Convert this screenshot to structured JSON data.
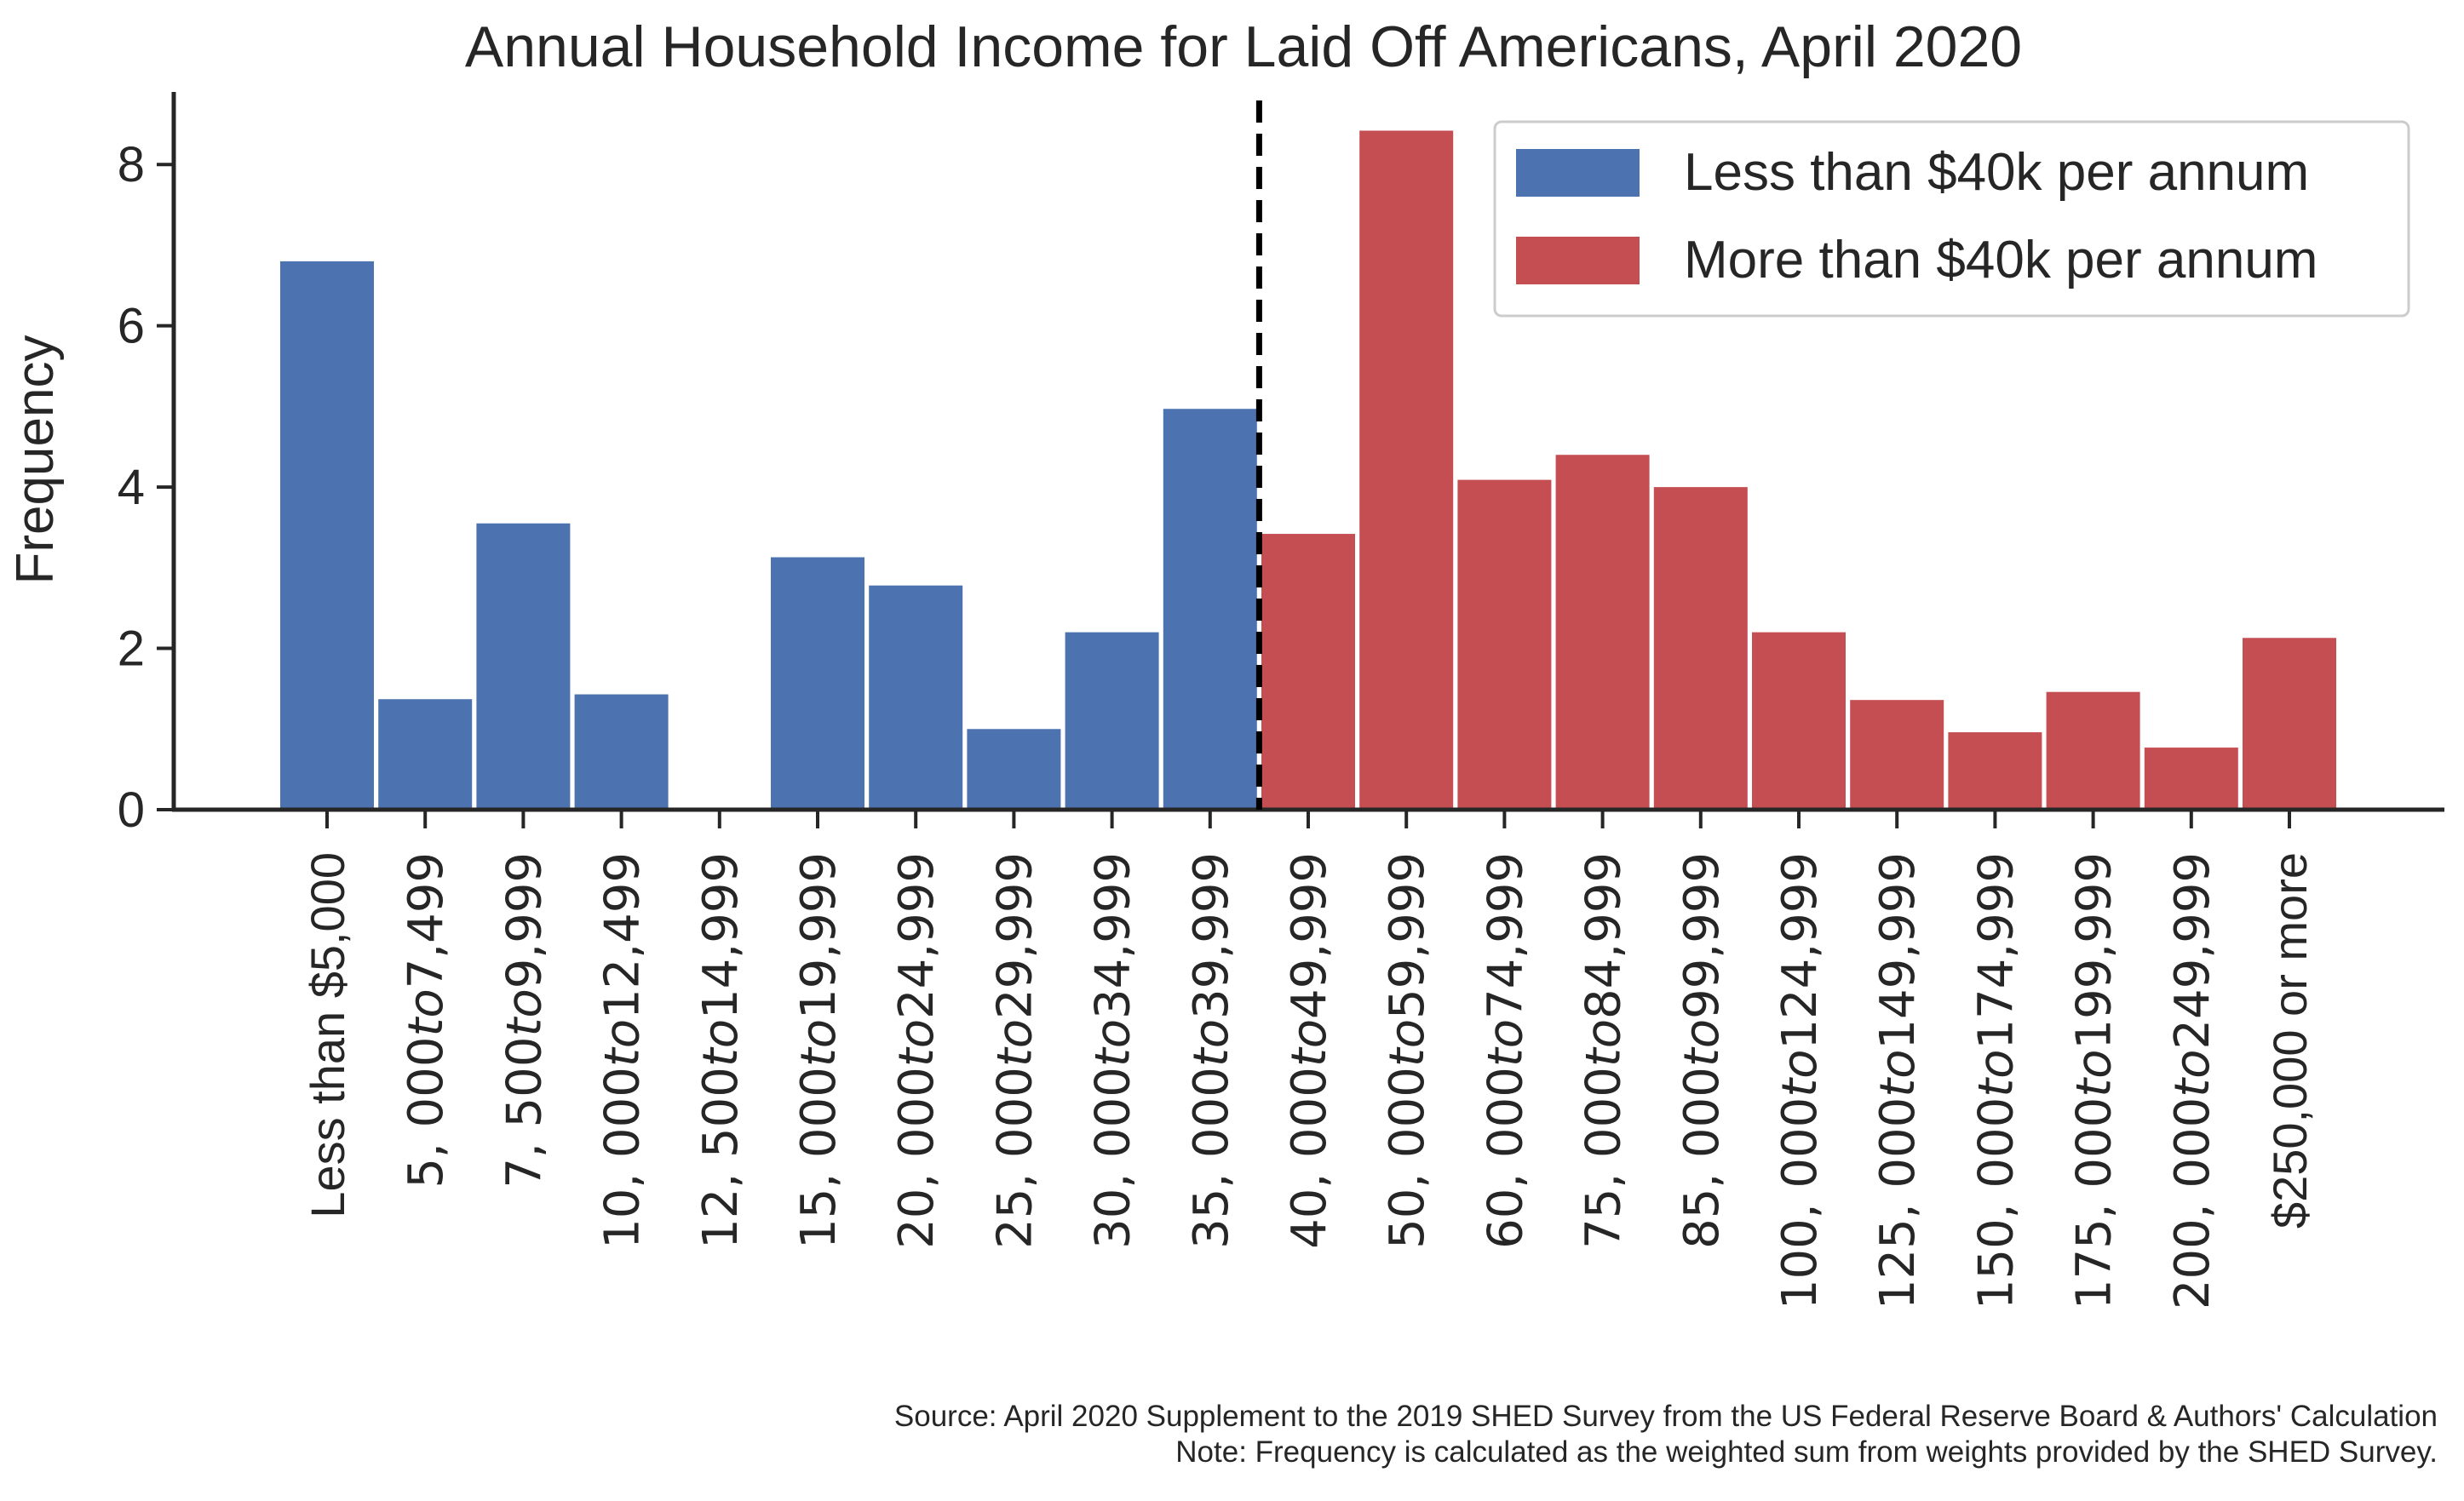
{
  "chart_data": {
    "type": "bar",
    "title": "Annual Household Income for Laid Off Americans, April 2020",
    "xlabel": "",
    "ylabel": "Frequency",
    "ylim": [
      0,
      8.9
    ],
    "yticks": [
      0,
      2,
      4,
      6,
      8
    ],
    "grid": false,
    "legend_position": "top-right",
    "categories": [
      {
        "parts": [
          {
            "t": "Less than $5,000",
            "i": false
          }
        ]
      },
      {
        "parts": [
          {
            "t": "5, 000",
            "i": false
          },
          {
            "t": "to",
            "i": true
          },
          {
            "t": "7,499",
            "i": false
          }
        ]
      },
      {
        "parts": [
          {
            "t": "7, 500",
            "i": false
          },
          {
            "t": "to",
            "i": true
          },
          {
            "t": "9,999",
            "i": false
          }
        ]
      },
      {
        "parts": [
          {
            "t": "10, 000",
            "i": false
          },
          {
            "t": "to",
            "i": true
          },
          {
            "t": "12,499",
            "i": false
          }
        ]
      },
      {
        "parts": [
          {
            "t": "12, 500",
            "i": false
          },
          {
            "t": "to",
            "i": true
          },
          {
            "t": "14,999",
            "i": false
          }
        ]
      },
      {
        "parts": [
          {
            "t": "15, 000",
            "i": false
          },
          {
            "t": "to",
            "i": true
          },
          {
            "t": "19,999",
            "i": false
          }
        ]
      },
      {
        "parts": [
          {
            "t": "20, 000",
            "i": false
          },
          {
            "t": "to",
            "i": true
          },
          {
            "t": "24,999",
            "i": false
          }
        ]
      },
      {
        "parts": [
          {
            "t": "25, 000",
            "i": false
          },
          {
            "t": "to",
            "i": true
          },
          {
            "t": "29,999",
            "i": false
          }
        ]
      },
      {
        "parts": [
          {
            "t": "30, 000",
            "i": false
          },
          {
            "t": "to",
            "i": true
          },
          {
            "t": "34,999",
            "i": false
          }
        ]
      },
      {
        "parts": [
          {
            "t": "35, 000",
            "i": false
          },
          {
            "t": "to",
            "i": true
          },
          {
            "t": "39,999",
            "i": false
          }
        ]
      },
      {
        "parts": [
          {
            "t": "40, 000",
            "i": false
          },
          {
            "t": "to",
            "i": true
          },
          {
            "t": "49,999",
            "i": false
          }
        ]
      },
      {
        "parts": [
          {
            "t": "50, 000",
            "i": false
          },
          {
            "t": "to",
            "i": true
          },
          {
            "t": "59,999",
            "i": false
          }
        ]
      },
      {
        "parts": [
          {
            "t": "60, 000",
            "i": false
          },
          {
            "t": "to",
            "i": true
          },
          {
            "t": "74,999",
            "i": false
          }
        ]
      },
      {
        "parts": [
          {
            "t": "75, 000",
            "i": false
          },
          {
            "t": "to",
            "i": true
          },
          {
            "t": "84,999",
            "i": false
          }
        ]
      },
      {
        "parts": [
          {
            "t": "85, 000",
            "i": false
          },
          {
            "t": "to",
            "i": true
          },
          {
            "t": "99,999",
            "i": false
          }
        ]
      },
      {
        "parts": [
          {
            "t": "100, 000",
            "i": false
          },
          {
            "t": "to",
            "i": true
          },
          {
            "t": "124,999",
            "i": false
          }
        ]
      },
      {
        "parts": [
          {
            "t": "125, 000",
            "i": false
          },
          {
            "t": "to",
            "i": true
          },
          {
            "t": "149,999",
            "i": false
          }
        ]
      },
      {
        "parts": [
          {
            "t": "150, 000",
            "i": false
          },
          {
            "t": "to",
            "i": true
          },
          {
            "t": "174,999",
            "i": false
          }
        ]
      },
      {
        "parts": [
          {
            "t": "175, 000",
            "i": false
          },
          {
            "t": "to",
            "i": true
          },
          {
            "t": "199,999",
            "i": false
          }
        ]
      },
      {
        "parts": [
          {
            "t": "200, 000",
            "i": false
          },
          {
            "t": "to",
            "i": true
          },
          {
            "t": "249,999",
            "i": false
          }
        ]
      },
      {
        "parts": [
          {
            "t": "$250,000 or more",
            "i": false
          }
        ]
      }
    ],
    "series": [
      {
        "name": "Less than $40k per annum",
        "color": "#4c72b0",
        "values": [
          6.8,
          1.37,
          3.55,
          1.43,
          0.0,
          3.13,
          2.78,
          1.0,
          2.2,
          4.97,
          null,
          null,
          null,
          null,
          null,
          null,
          null,
          null,
          null,
          null,
          null
        ]
      },
      {
        "name": "More than $40k per annum",
        "color": "#c44e52",
        "values": [
          null,
          null,
          null,
          null,
          null,
          null,
          null,
          null,
          null,
          null,
          3.42,
          8.42,
          4.09,
          4.4,
          4.0,
          2.2,
          1.36,
          0.96,
          1.46,
          0.77,
          2.13
        ]
      }
    ],
    "divider": {
      "style": "dashed",
      "color": "#000000",
      "between_categories": [
        9,
        10
      ]
    }
  },
  "footnote": {
    "source": "Source: April 2020 Supplement to the 2019 SHED Survey from the US Federal Reserve Board & Authors' Calculation",
    "note": "Note: Frequency is calculated as the weighted sum from weights provided by the SHED Survey."
  }
}
